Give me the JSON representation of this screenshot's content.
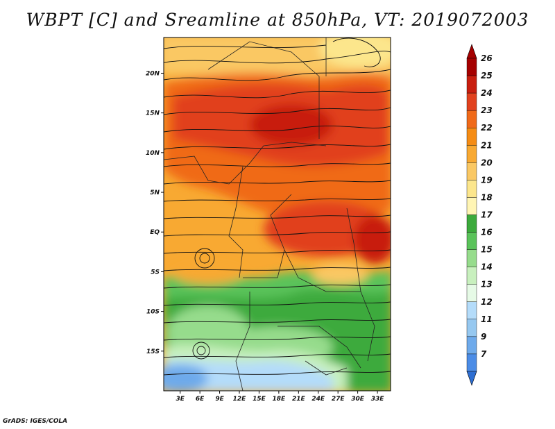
{
  "title": "WBPT [C] and Sreamline at 850hPa, VT: 2019072003",
  "credit": "GrADS: IGES/COLA",
  "map": {
    "lat_ticks": [
      {
        "value": 20,
        "label": "20N"
      },
      {
        "value": 15,
        "label": "15N"
      },
      {
        "value": 10,
        "label": "10N"
      },
      {
        "value": 5,
        "label": "5N"
      },
      {
        "value": 0,
        "label": "EQ"
      },
      {
        "value": -5,
        "label": "5S"
      },
      {
        "value": -10,
        "label": "10S"
      },
      {
        "value": -15,
        "label": "15S"
      }
    ],
    "lon_ticks": [
      {
        "value": 3,
        "label": "3E"
      },
      {
        "value": 6,
        "label": "6E"
      },
      {
        "value": 9,
        "label": "9E"
      },
      {
        "value": 12,
        "label": "12E"
      },
      {
        "value": 15,
        "label": "15E"
      },
      {
        "value": 18,
        "label": "18E"
      },
      {
        "value": 21,
        "label": "21E"
      },
      {
        "value": 24,
        "label": "24E"
      },
      {
        "value": 27,
        "label": "27E"
      },
      {
        "value": 30,
        "label": "30E"
      },
      {
        "value": 33,
        "label": "33E"
      }
    ],
    "lat_range": [
      -20,
      24.5
    ],
    "lon_range": [
      0.5,
      35
    ]
  },
  "colorbar": {
    "levels": [
      {
        "label": "26",
        "color": "#a50000"
      },
      {
        "label": "25",
        "color": "#c81e0f"
      },
      {
        "label": "24",
        "color": "#e1411e"
      },
      {
        "label": "23",
        "color": "#f06a19"
      },
      {
        "label": "22",
        "color": "#f58c14"
      },
      {
        "label": "21",
        "color": "#f8a932"
      },
      {
        "label": "20",
        "color": "#fac864"
      },
      {
        "label": "19",
        "color": "#fce68c"
      },
      {
        "label": "18",
        "color": "#fff5b4"
      },
      {
        "label": "17",
        "color": "#3caa3c"
      },
      {
        "label": "16",
        "color": "#5ac35a"
      },
      {
        "label": "15",
        "color": "#96dc8c"
      },
      {
        "label": "14",
        "color": "#c8f0be"
      },
      {
        "label": "13",
        "color": "#e6fae6"
      },
      {
        "label": "12",
        "color": "#b4dcfa"
      },
      {
        "label": "11",
        "color": "#96c8f0"
      },
      {
        "label": "9",
        "color": "#6eaaeb"
      },
      {
        "label": "7",
        "color": "#4b8ce6"
      }
    ],
    "bottom_color": "#2d6ed2"
  }
}
